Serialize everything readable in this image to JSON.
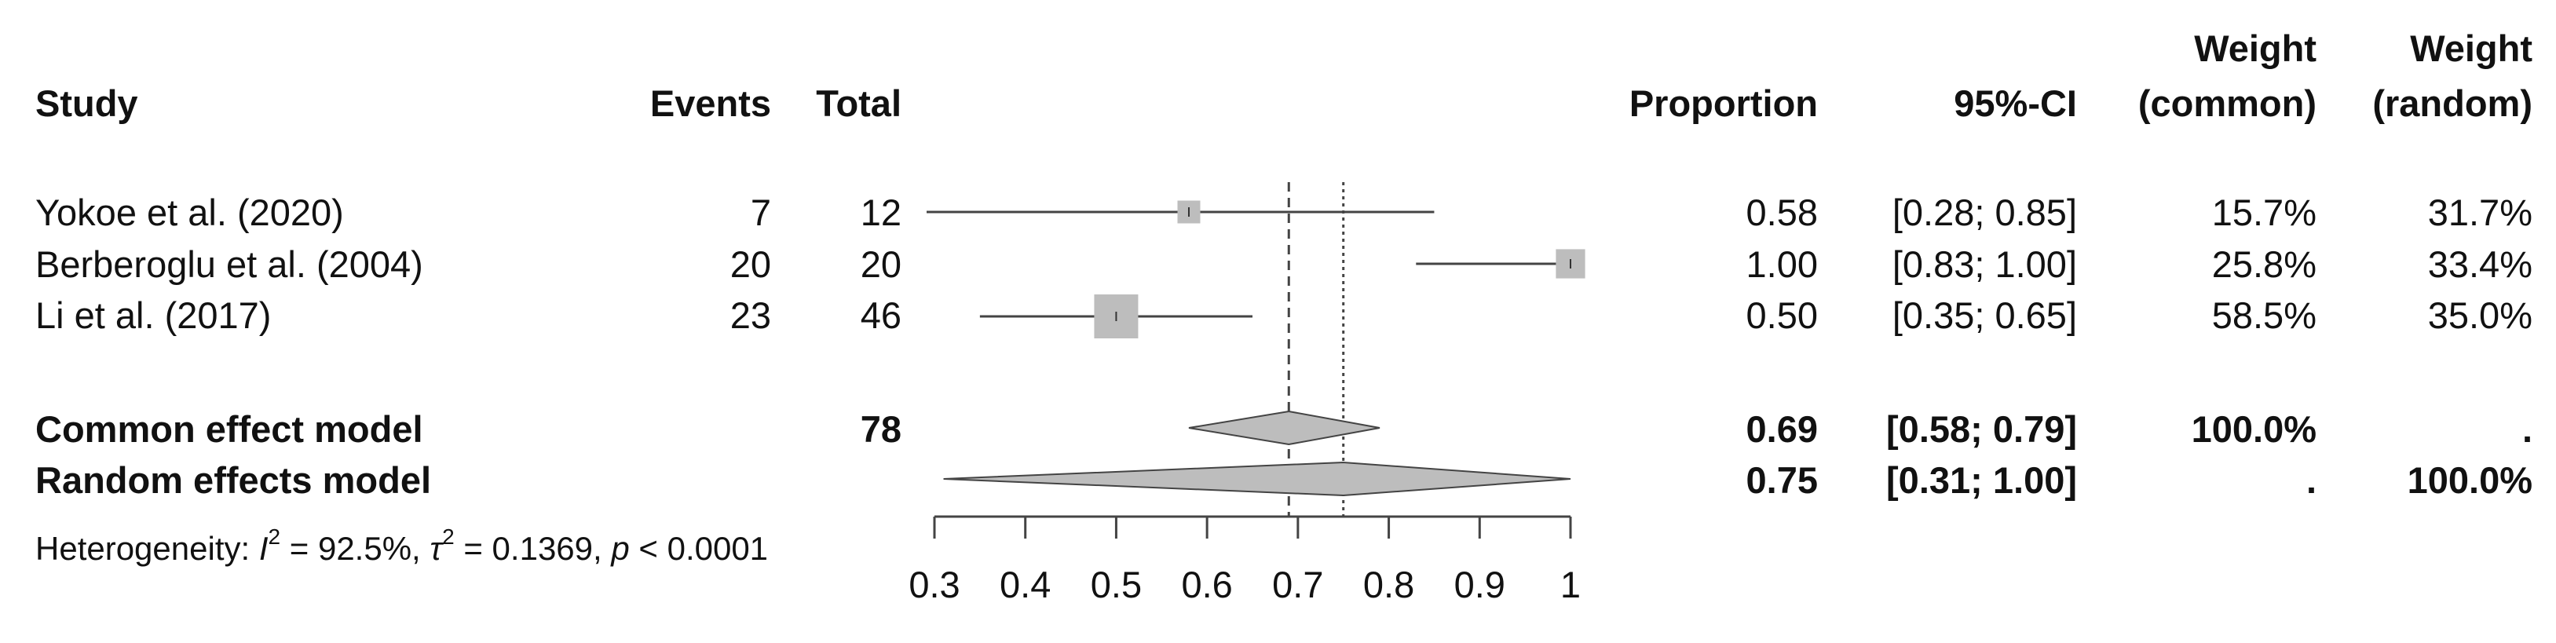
{
  "headers": {
    "study": "Study",
    "events": "Events",
    "total": "Total",
    "proportion": "Proportion",
    "ci": "95%-CI",
    "weight_common_line1": "Weight",
    "weight_common_line2": "(common)",
    "weight_random_line1": "Weight",
    "weight_random_line2": "(random)"
  },
  "chart_data": {
    "type": "forest",
    "xlim": [
      0.3,
      1.0
    ],
    "ticks": [
      "0.3",
      "0.4",
      "0.5",
      "0.6",
      "0.7",
      "0.8",
      "0.9",
      "1"
    ],
    "tick_values": [
      0.3,
      0.4,
      0.5,
      0.6,
      0.7,
      0.8,
      0.9,
      1.0
    ],
    "studies": [
      {
        "name": "Yokoe et al. (2020)",
        "events": "7",
        "total": "12",
        "proportion": 0.58,
        "lower": 0.28,
        "upper": 0.85,
        "proportion_text": "0.58",
        "ci_text": "[0.28; 0.85]",
        "weight_common": "15.7%",
        "weight_random": "31.7%",
        "weight_common_value": 15.7
      },
      {
        "name": "Berberoglu et al. (2004)",
        "events": "20",
        "total": "20",
        "proportion": 1.0,
        "lower": 0.83,
        "upper": 1.0,
        "proportion_text": "1.00",
        "ci_text": "[0.83; 1.00]",
        "weight_common": "25.8%",
        "weight_random": "33.4%",
        "weight_common_value": 25.8
      },
      {
        "name": "Li et al. (2017)",
        "events": "23",
        "total": "46",
        "proportion": 0.5,
        "lower": 0.35,
        "upper": 0.65,
        "proportion_text": "0.50",
        "ci_text": "[0.35; 0.65]",
        "weight_common": "58.5%",
        "weight_random": "35.0%",
        "weight_common_value": 58.5
      }
    ],
    "common": {
      "name": "Common effect model",
      "total": "78",
      "estimate": 0.69,
      "lower": 0.58,
      "upper": 0.79,
      "proportion_text": "0.69",
      "ci_text": "[0.58; 0.79]",
      "weight_common": "100.0%",
      "weight_random": "."
    },
    "random": {
      "name": "Random effects model",
      "estimate": 0.75,
      "lower": 0.31,
      "upper": 1.0,
      "proportion_text": "0.75",
      "ci_text": "[0.31; 1.00]",
      "weight_common": ".",
      "weight_random": "100.0%"
    },
    "heterogeneity": {
      "prefix": "Heterogeneity: ",
      "i2_symbol": "I",
      "i2_value": " = 92.5%, ",
      "tau2_symbol": "τ",
      "tau2_value": " = 0.1369, ",
      "p_symbol": "p",
      "p_value": " < 0.0001",
      "superscript": "2"
    }
  },
  "colors": {
    "square": "#bdbdbd",
    "diamond": "#bdbdbd",
    "line": "#444444",
    "text": "#111111"
  }
}
